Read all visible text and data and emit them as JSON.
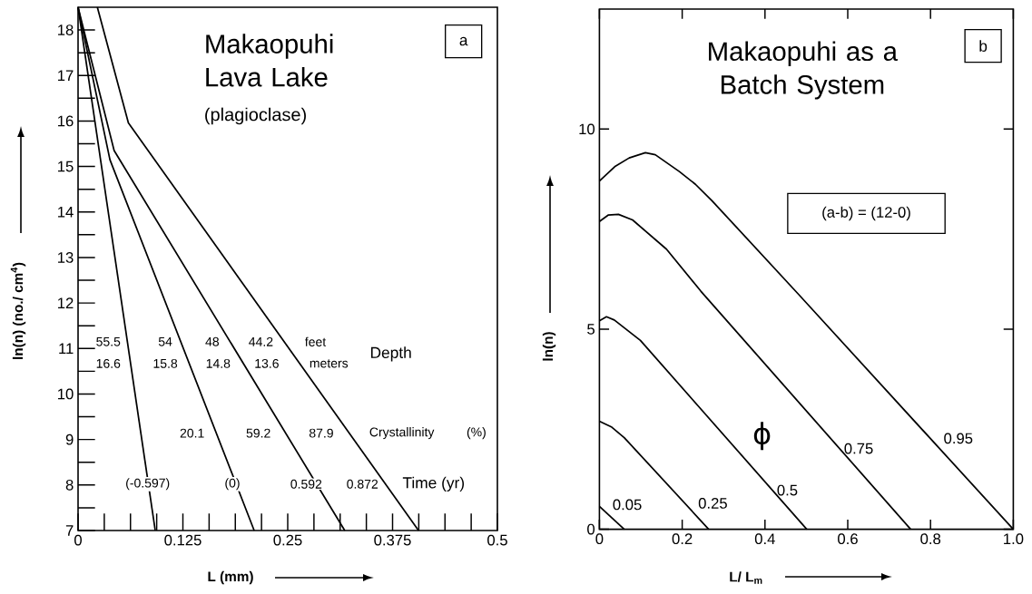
{
  "chart_data": [
    {
      "type": "line",
      "title": "Makaopuhi Lava Lake",
      "subtitle": "(plagioclase)",
      "xlabel": "L (mm)",
      "ylabel": "ln(n) (no./ cm$^{4}$)",
      "xlim": [
        0,
        0.5
      ],
      "ylim": [
        7,
        18.5
      ],
      "xticks": [
        0,
        0.125,
        0.25,
        0.375,
        0.5
      ],
      "yticks": [
        7,
        8,
        9,
        10,
        11,
        12,
        13,
        14,
        15,
        16,
        17,
        18
      ],
      "series": [
        {
          "color": "#000000",
          "x": [
            0,
            0.092
          ],
          "values": [
            18.5,
            7
          ]
        },
        {
          "color": "#000000",
          "x": [
            0,
            0.038,
            0.21
          ],
          "values": [
            18.5,
            15.15,
            7
          ]
        },
        {
          "color": "#000000",
          "x": [
            0,
            0.043,
            0.318
          ],
          "values": [
            18.5,
            15.35,
            7
          ]
        },
        {
          "color": "#000000",
          "x": [
            0.023,
            0.06,
            0.406
          ],
          "values": [
            18.5,
            15.96,
            7
          ]
        }
      ],
      "annotations": [
        "a",
        "55.5",
        "54",
        "48",
        "44.2",
        "feet",
        "16.6",
        "15.8",
        "14.8",
        "13.6",
        "meters",
        "Depth",
        "20.1",
        "59.2",
        "87.9",
        "Crystallinity",
        "(%)",
        "(-0.597)",
        "(0)",
        "0.592",
        "0.872",
        "Time  (yr)"
      ]
    },
    {
      "type": "line",
      "title": "Makaopuhi as a Batch System",
      "xlabel": "L/ L$_{m}$",
      "ylabel": "ln(n)",
      "xlim": [
        0,
        1
      ],
      "ylim": [
        0,
        13
      ],
      "xticks": [
        0,
        0.2,
        0.4,
        0.6,
        0.8,
        {
          "value": 1,
          "label": "1.0"
        }
      ],
      "yticks": [
        0,
        5,
        10
      ],
      "series": [
        {
          "name": "0.05",
          "color": "#000000",
          "x": [
            0,
            0.06
          ],
          "values": [
            0.57,
            0
          ]
        },
        {
          "name": "0.25",
          "color": "#000000",
          "x": [
            0,
            0.03,
            0.06,
            0.264
          ],
          "values": [
            2.7,
            2.55,
            2.29,
            0
          ]
        },
        {
          "name": "0.5",
          "color": "#000000",
          "x": [
            0,
            0.017,
            0.036,
            0.099,
            0.501
          ],
          "values": [
            5.21,
            5.31,
            5.23,
            4.72,
            0
          ]
        },
        {
          "name": "0.75",
          "color": "#000000",
          "x": [
            0,
            0.021,
            0.046,
            0.08,
            0.162,
            0.245,
            0.752
          ],
          "values": [
            7.69,
            7.85,
            7.87,
            7.73,
            7.0,
            5.95,
            0
          ]
        },
        {
          "name": "0.95",
          "color": "#000000",
          "x": [
            0,
            0.037,
            0.072,
            0.111,
            0.135,
            0.193,
            0.232,
            0.272,
            0.483,
            1.0
          ],
          "values": [
            8.7,
            9.06,
            9.28,
            9.41,
            9.36,
            8.94,
            8.62,
            8.21,
            5.85,
            0
          ]
        }
      ],
      "annotations": [
        "b",
        "(a-b) = (12-0)",
        "ϕ"
      ]
    }
  ]
}
